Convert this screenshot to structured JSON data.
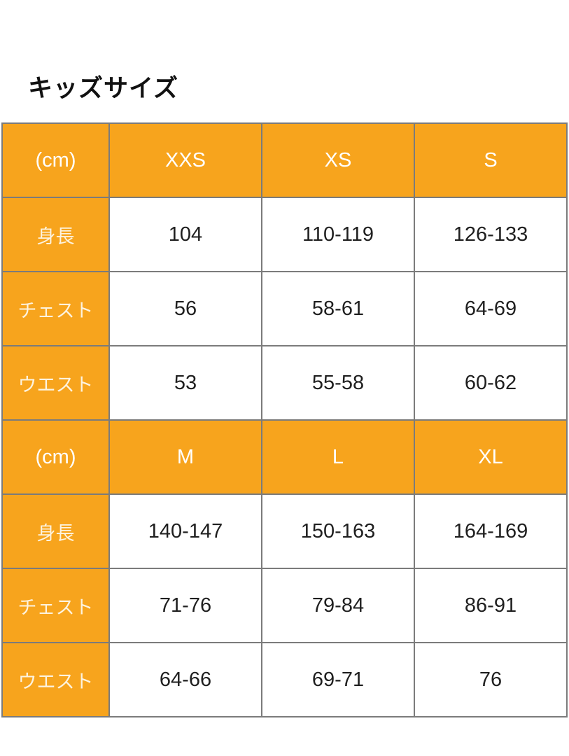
{
  "page_title": "キッズサイズ",
  "colors": {
    "page_bg": "#ffffff",
    "header_bg": "#f7a41d",
    "header_text": "#ffffff",
    "value_text": "#1f1f1f",
    "grid_border": "#7b7b7b",
    "title_text": "#111111"
  },
  "chart_data": {
    "type": "table",
    "title": "キッズサイズ",
    "unit": "cm",
    "tables": [
      {
        "columns": [
          "(cm)",
          "XXS",
          "XS",
          "S"
        ],
        "rows": [
          [
            "身長",
            "104",
            "110-119",
            "126-133"
          ],
          [
            "チェスト",
            "56",
            "58-61",
            "64-69"
          ],
          [
            "ウエスト",
            "53",
            "55-58",
            "60-62"
          ]
        ]
      },
      {
        "columns": [
          "(cm)",
          "M",
          "L",
          "XL"
        ],
        "rows": [
          [
            "身長",
            "140-147",
            "150-163",
            "164-169"
          ],
          [
            "チェスト",
            "71-76",
            "79-84",
            "86-91"
          ],
          [
            "ウエスト",
            "64-66",
            "69-71",
            "76"
          ]
        ]
      }
    ]
  }
}
